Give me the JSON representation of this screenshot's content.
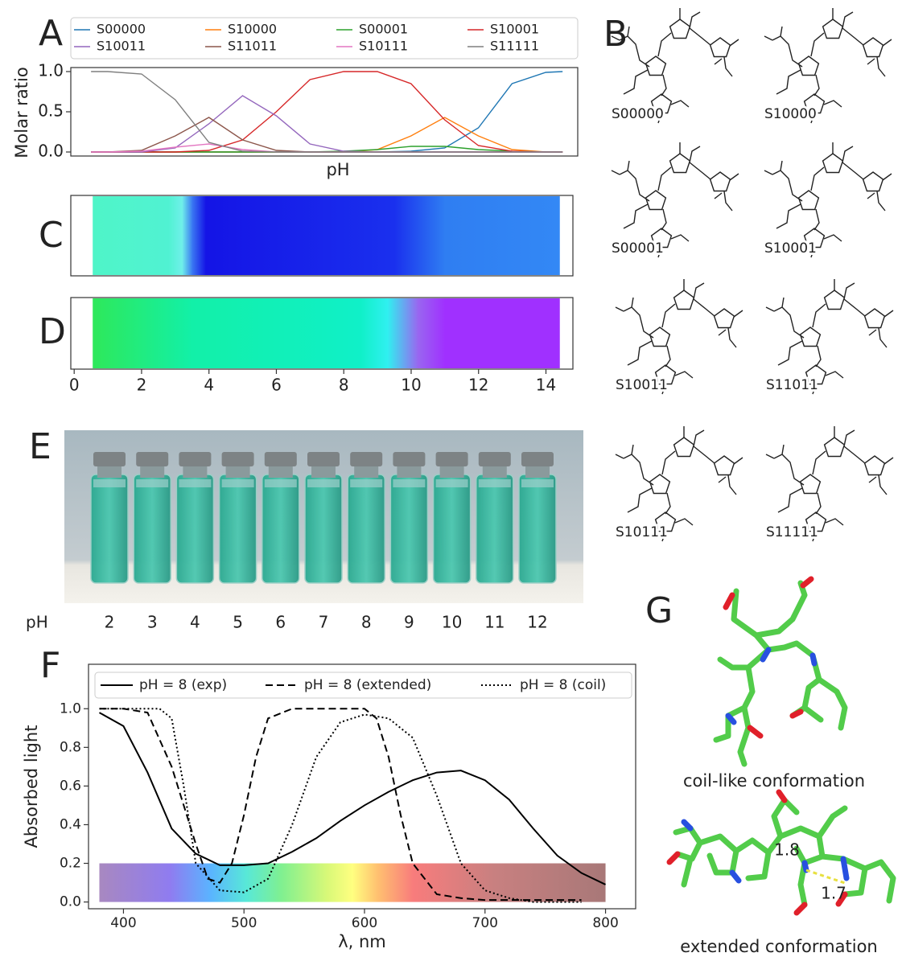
{
  "chart_data": [
    {
      "type": "line",
      "panel": "A",
      "x_label": "pH",
      "y_label": "Molar ratio",
      "x": [
        0.5,
        1,
        2,
        3,
        4,
        5,
        6,
        7,
        8,
        9,
        10,
        11,
        12,
        13,
        14,
        14.5
      ],
      "xlim": [
        -0.1,
        14.95
      ],
      "ylim": [
        -0.05,
        1.05
      ],
      "yticks": [
        {
          "value": 0,
          "label": "0.0"
        },
        {
          "value": 0.5,
          "label": "0.5"
        },
        {
          "value": 1,
          "label": "1.0"
        }
      ],
      "series": [
        {
          "name": "S00000",
          "color": "#1f77b4",
          "values": [
            0,
            0,
            0,
            0,
            0,
            0,
            0,
            0,
            0,
            0,
            0.01,
            0.05,
            0.3,
            0.85,
            0.99,
            1.0
          ]
        },
        {
          "name": "S10000",
          "color": "#ff7f0e",
          "values": [
            0,
            0,
            0,
            0,
            0,
            0,
            0,
            0,
            0,
            0.03,
            0.2,
            0.43,
            0.2,
            0.03,
            0,
            0
          ]
        },
        {
          "name": "S00001",
          "color": "#2ca02c",
          "values": [
            0,
            0,
            0,
            0,
            0,
            0,
            0,
            0,
            0.01,
            0.03,
            0.07,
            0.07,
            0.03,
            0.01,
            0,
            0
          ]
        },
        {
          "name": "S10001",
          "color": "#d62728",
          "values": [
            0,
            0,
            0,
            0,
            0.02,
            0.15,
            0.5,
            0.9,
            1.0,
            1.0,
            0.85,
            0.4,
            0.08,
            0.01,
            0,
            0
          ]
        },
        {
          "name": "S10011",
          "color": "#9467bd",
          "values": [
            0,
            0,
            0,
            0.05,
            0.35,
            0.7,
            0.45,
            0.1,
            0.01,
            0,
            0,
            0,
            0,
            0,
            0,
            0
          ]
        },
        {
          "name": "S11011",
          "color": "#8c564b",
          "values": [
            0,
            0,
            0.02,
            0.2,
            0.43,
            0.15,
            0.02,
            0,
            0,
            0,
            0,
            0,
            0,
            0,
            0,
            0
          ]
        },
        {
          "name": "S10111",
          "color": "#e377c2",
          "values": [
            0,
            0,
            0.01,
            0.06,
            0.1,
            0.03,
            0,
            0,
            0,
            0,
            0,
            0,
            0,
            0,
            0,
            0
          ]
        },
        {
          "name": "S11111",
          "color": "#7f7f7f",
          "values": [
            1.0,
            1.0,
            0.97,
            0.65,
            0.12,
            0.01,
            0,
            0,
            0,
            0,
            0,
            0,
            0,
            0,
            0,
            0
          ]
        }
      ]
    },
    {
      "type": "colorstrip",
      "panel": "C",
      "xlim": [
        -0.1,
        14.8
      ],
      "stops": [
        0.55,
        2.8,
        3.2,
        3.5,
        3.9,
        9.5,
        11,
        14.4
      ],
      "colors": [
        "#4ff5c8",
        "#50f2d2",
        "#70f0ea",
        "#3a78f2",
        "#1414e6",
        "#1a30ee",
        "#2f7ef2",
        "#3388f5"
      ]
    },
    {
      "type": "colorstrip",
      "panel": "D",
      "xlim": [
        -0.1,
        14.8
      ],
      "stops": [
        0.55,
        3.5,
        8.5,
        9.3,
        10.2,
        11,
        14.4
      ],
      "colors": [
        "#2ee85a",
        "#12f0a8",
        "#10f0c8",
        "#30f0f0",
        "#9966f0",
        "#a030ff",
        "#a030ff"
      ],
      "xticks": [
        0,
        2,
        4,
        6,
        8,
        10,
        12,
        14
      ]
    },
    {
      "type": "line",
      "panel": "F",
      "x_label": "λ, nm",
      "y_label": "Absorbed light",
      "xlim": [
        371,
        825
      ],
      "ylim": [
        -0.035,
        1.23
      ],
      "xticks": [
        400,
        500,
        600,
        700,
        800
      ],
      "yticks": [
        {
          "value": 0,
          "label": "0.0"
        },
        {
          "value": 0.2,
          "label": "0.2"
        },
        {
          "value": 0.4,
          "label": "0.4"
        },
        {
          "value": 0.6,
          "label": "0.6"
        },
        {
          "value": 0.8,
          "label": "0.8"
        },
        {
          "value": 1,
          "label": "1.0"
        }
      ],
      "band": {
        "x": [
          380,
          800
        ],
        "y": [
          0,
          0.2
        ]
      },
      "series": [
        {
          "name": "pH = 8 (exp)",
          "color": "#000000",
          "dash": "solid",
          "x": [
            380,
            400,
            420,
            440,
            460,
            480,
            500,
            520,
            540,
            560,
            580,
            600,
            620,
            640,
            660,
            680,
            700,
            720,
            740,
            760,
            780,
            800
          ],
          "values": [
            0.98,
            0.91,
            0.67,
            0.38,
            0.25,
            0.19,
            0.19,
            0.2,
            0.26,
            0.33,
            0.42,
            0.5,
            0.57,
            0.63,
            0.67,
            0.68,
            0.63,
            0.53,
            0.38,
            0.24,
            0.15,
            0.09
          ]
        },
        {
          "name": "pH = 8 (extended)",
          "color": "#000000",
          "dash": "dashed",
          "x": [
            380,
            400,
            420,
            440,
            460,
            470,
            480,
            490,
            500,
            510,
            520,
            540,
            580,
            600,
            610,
            620,
            630,
            640,
            660,
            680,
            700,
            780
          ],
          "values": [
            1.0,
            1.0,
            0.98,
            0.7,
            0.3,
            0.12,
            0.1,
            0.2,
            0.45,
            0.75,
            0.95,
            1.0,
            1.0,
            1.0,
            0.95,
            0.75,
            0.45,
            0.2,
            0.04,
            0.02,
            0.01,
            0.01
          ]
        },
        {
          "name": "pH = 8 (coil)",
          "color": "#000000",
          "dash": "dotted",
          "x": [
            380,
            430,
            440,
            450,
            460,
            480,
            500,
            520,
            540,
            560,
            580,
            600,
            620,
            640,
            660,
            680,
            700,
            720,
            740,
            780
          ],
          "values": [
            1.0,
            1.0,
            0.95,
            0.6,
            0.2,
            0.06,
            0.05,
            0.12,
            0.4,
            0.75,
            0.93,
            0.97,
            0.95,
            0.85,
            0.55,
            0.2,
            0.06,
            0.02,
            0,
            0
          ]
        }
      ]
    }
  ],
  "structures": {
    "panel": "B",
    "names": [
      "S00000",
      "S10000",
      "S00001",
      "S10001",
      "S10011",
      "S11011",
      "S10111",
      "S11111"
    ]
  },
  "photo": {
    "panel": "E",
    "axis_label": "pH",
    "labels": [
      "2",
      "3",
      "4",
      "5",
      "6",
      "7",
      "8",
      "9",
      "10",
      "11",
      "12"
    ]
  },
  "conformations": {
    "panel": "G",
    "coil_caption": "coil-like conformation",
    "extended_caption": "extended conformation",
    "distances": [
      1.8,
      1.7
    ]
  }
}
